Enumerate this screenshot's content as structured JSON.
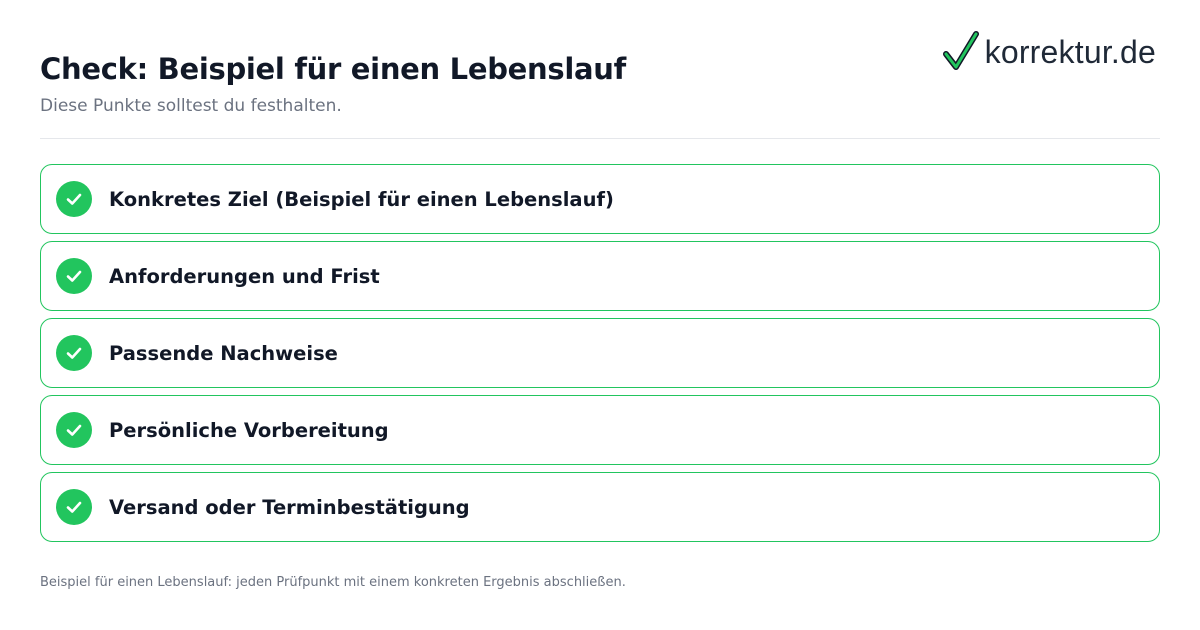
{
  "header": {
    "title": "Check: Beispiel für einen Lebenslauf",
    "subtitle": "Diese Punkte solltest du festhalten."
  },
  "logo": {
    "text": "korrektur.de",
    "icon": "checkmark-icon",
    "icon_color": "#22c55e"
  },
  "checklist": {
    "items": [
      {
        "label": "Konkretes Ziel (Beispiel für einen Lebenslauf)",
        "checked": true
      },
      {
        "label": "Anforderungen und Frist",
        "checked": true
      },
      {
        "label": "Passende Nachweise",
        "checked": true
      },
      {
        "label": "Persönliche Vorbereitung",
        "checked": true
      },
      {
        "label": "Versand oder Terminbestätigung",
        "checked": true
      }
    ]
  },
  "footer": {
    "note": "Beispiel für einen Lebenslauf: jeden Prüfpunkt mit einem konkreten Ergebnis abschließen."
  },
  "colors": {
    "accent": "#22c55e",
    "text": "#111827",
    "muted": "#6b7280",
    "divider": "#e5e7eb"
  }
}
